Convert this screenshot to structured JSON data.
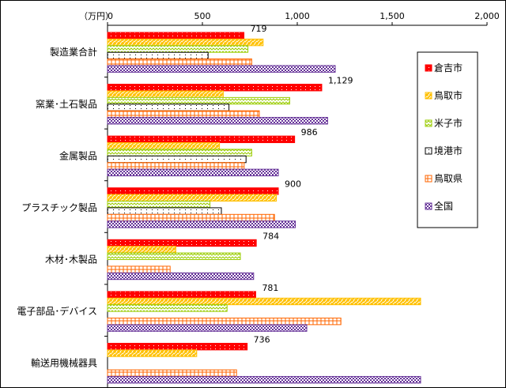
{
  "chart_data": {
    "type": "bar",
    "orientation": "horizontal",
    "unit_label": "（万円）",
    "xlim": [
      0,
      2000
    ],
    "x_ticks": [
      0,
      500,
      1000,
      1500,
      2000
    ],
    "x_tick_labels": [
      "0",
      "500",
      "1,000",
      "1,500",
      "2,000"
    ],
    "categories": [
      "製造業合計",
      "窯業･土石製品",
      "金属製品",
      "プラスチック製品",
      "木材･木製品",
      "電子部品･デバイス",
      "輸送用機械器具"
    ],
    "series": [
      {
        "name": "倉吉市",
        "color": "#ff0000",
        "pattern": "dots-red",
        "values": [
          719,
          1129,
          986,
          900,
          784,
          781,
          736
        ],
        "data_labels": [
          "719",
          "1,129",
          "986",
          "900",
          "784",
          "781",
          "736"
        ]
      },
      {
        "name": "鳥取市",
        "color": "#ffc000",
        "pattern": "diag-yellow",
        "values": [
          820,
          610,
          590,
          890,
          360,
          1650,
          470
        ]
      },
      {
        "name": "米子市",
        "color": "#99cc00",
        "pattern": "wave-green",
        "values": [
          740,
          960,
          760,
          540,
          700,
          630,
          null
        ]
      },
      {
        "name": "境港市",
        "color": "#000000",
        "pattern": "dots-black",
        "values": [
          530,
          640,
          730,
          600,
          null,
          null,
          null
        ]
      },
      {
        "name": "鳥取県",
        "color": "#ff6600",
        "pattern": "grid-orange",
        "values": [
          760,
          800,
          720,
          880,
          330,
          1230,
          680
        ]
      },
      {
        "name": "全国",
        "color": "#663399",
        "pattern": "checker-purple",
        "values": [
          1200,
          1160,
          900,
          990,
          770,
          1050,
          1650
        ]
      }
    ],
    "legend_position": "right",
    "grid": false
  }
}
